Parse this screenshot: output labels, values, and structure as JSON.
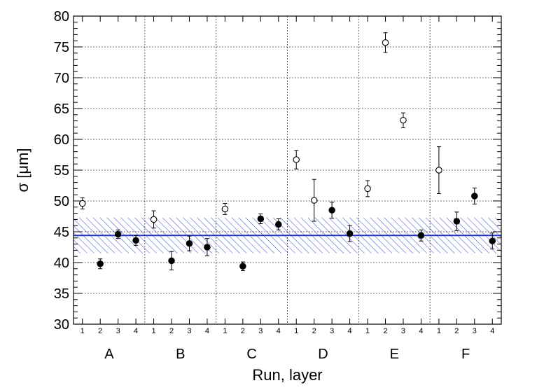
{
  "chart_data": {
    "type": "scatter",
    "xlabel": "Run, layer",
    "ylabel": "σ [μm]",
    "ylim": [
      30,
      80
    ],
    "yticks": [
      30,
      35,
      40,
      45,
      50,
      55,
      60,
      65,
      70,
      75,
      80
    ],
    "grid": "dotted",
    "groups": [
      "A",
      "B",
      "C",
      "D",
      "E",
      "F"
    ],
    "layers": [
      "1",
      "2",
      "3",
      "4"
    ],
    "reference": {
      "value": 44.4,
      "band": [
        41.5,
        47.3
      ],
      "color": "#2233cc"
    },
    "points": [
      {
        "group": "A",
        "layer": 1,
        "value": 49.6,
        "err": 0.9,
        "marker": "open"
      },
      {
        "group": "A",
        "layer": 2,
        "value": 39.8,
        "err": 0.8,
        "marker": "filled"
      },
      {
        "group": "A",
        "layer": 3,
        "value": 44.6,
        "err": 0.7,
        "marker": "filled"
      },
      {
        "group": "A",
        "layer": 4,
        "value": 43.6,
        "err": 0.8,
        "marker": "filled"
      },
      {
        "group": "B",
        "layer": 1,
        "value": 47.0,
        "err": 1.4,
        "marker": "open"
      },
      {
        "group": "B",
        "layer": 2,
        "value": 40.3,
        "err": 1.5,
        "marker": "filled"
      },
      {
        "group": "B",
        "layer": 3,
        "value": 43.1,
        "err": 1.2,
        "marker": "filled"
      },
      {
        "group": "B",
        "layer": 4,
        "value": 42.5,
        "err": 1.4,
        "marker": "filled"
      },
      {
        "group": "C",
        "layer": 1,
        "value": 48.7,
        "err": 0.9,
        "marker": "open"
      },
      {
        "group": "C",
        "layer": 2,
        "value": 39.4,
        "err": 0.7,
        "marker": "filled"
      },
      {
        "group": "C",
        "layer": 3,
        "value": 47.1,
        "err": 0.8,
        "marker": "filled"
      },
      {
        "group": "C",
        "layer": 4,
        "value": 46.2,
        "err": 0.9,
        "marker": "filled"
      },
      {
        "group": "D",
        "layer": 1,
        "value": 56.7,
        "err": 1.5,
        "marker": "open"
      },
      {
        "group": "D",
        "layer": 2,
        "value": 50.1,
        "err": 3.4,
        "marker": "open"
      },
      {
        "group": "D",
        "layer": 3,
        "value": 48.5,
        "err": 1.3,
        "marker": "filled"
      },
      {
        "group": "D",
        "layer": 4,
        "value": 44.7,
        "err": 1.3,
        "marker": "filled"
      },
      {
        "group": "E",
        "layer": 1,
        "value": 52.0,
        "err": 1.3,
        "marker": "open"
      },
      {
        "group": "E",
        "layer": 2,
        "value": 75.7,
        "err": 1.6,
        "marker": "open"
      },
      {
        "group": "E",
        "layer": 3,
        "value": 63.1,
        "err": 1.2,
        "marker": "open"
      },
      {
        "group": "E",
        "layer": 4,
        "value": 44.4,
        "err": 0.9,
        "marker": "filled"
      },
      {
        "group": "F",
        "layer": 1,
        "value": 55.0,
        "err": 3.8,
        "marker": "open"
      },
      {
        "group": "F",
        "layer": 2,
        "value": 46.7,
        "err": 1.5,
        "marker": "filled"
      },
      {
        "group": "F",
        "layer": 3,
        "value": 50.8,
        "err": 1.3,
        "marker": "filled"
      },
      {
        "group": "F",
        "layer": 4,
        "value": 43.5,
        "err": 1.3,
        "marker": "filled"
      }
    ]
  }
}
